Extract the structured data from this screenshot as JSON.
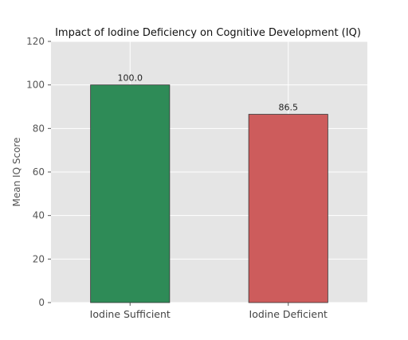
{
  "chart_data": {
    "type": "bar",
    "title": "Impact of Iodine Deficiency on Cognitive Development (IQ)",
    "xlabel": "",
    "ylabel": "Mean IQ Score",
    "categories": [
      "Iodine Sufficient",
      "Iodine Deficient"
    ],
    "values": [
      100.0,
      86.5
    ],
    "data_labels": [
      "100.0",
      "86.5"
    ],
    "ylim": [
      0,
      120
    ],
    "yticks": [
      0,
      20,
      40,
      60,
      80,
      100,
      120
    ],
    "ytick_labels": [
      "0",
      "20",
      "40",
      "60",
      "80",
      "100",
      "120"
    ],
    "grid": true,
    "legend": "none",
    "colors": {
      "bars": [
        "#2e8b57",
        "#cd5c5c"
      ],
      "background": "#e5e5e5",
      "grid": "#ffffff"
    }
  }
}
